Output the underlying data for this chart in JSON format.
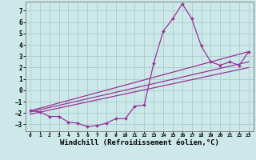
{
  "background_color": "#cce8e8",
  "grid_color": "#aacccc",
  "line_color": "#993399",
  "xlabel": "Windchill (Refroidissement éolien,°C)",
  "xlabel_fontsize": 6.5,
  "yticks": [
    -3,
    -2,
    -1,
    0,
    1,
    2,
    3,
    4,
    5,
    6,
    7
  ],
  "xticks": [
    0,
    1,
    2,
    3,
    4,
    5,
    6,
    7,
    8,
    9,
    10,
    11,
    12,
    13,
    14,
    15,
    16,
    17,
    18,
    19,
    20,
    21,
    22,
    23
  ],
  "xlim": [
    -0.5,
    23.5
  ],
  "ylim": [
    -3.6,
    7.8
  ],
  "main_line": {
    "x": [
      0,
      1,
      2,
      3,
      4,
      5,
      6,
      7,
      8,
      9,
      10,
      11,
      12,
      13,
      14,
      15,
      16,
      17,
      18,
      19,
      20,
      21,
      22,
      23
    ],
    "y": [
      -1.8,
      -1.9,
      -2.3,
      -2.3,
      -2.8,
      -2.9,
      -3.2,
      -3.1,
      -2.9,
      -2.5,
      -2.5,
      -1.4,
      -1.3,
      2.4,
      5.2,
      6.3,
      7.6,
      6.3,
      3.9,
      2.5,
      2.2,
      2.5,
      2.2,
      3.4
    ]
  },
  "ref_lines": [
    {
      "x0": 0,
      "y0": -1.8,
      "x1": 23,
      "y1": 3.4
    },
    {
      "x0": 0,
      "y0": -1.9,
      "x1": 23,
      "y1": 2.5
    },
    {
      "x0": 0,
      "y0": -2.1,
      "x1": 23,
      "y1": 2.0
    }
  ]
}
